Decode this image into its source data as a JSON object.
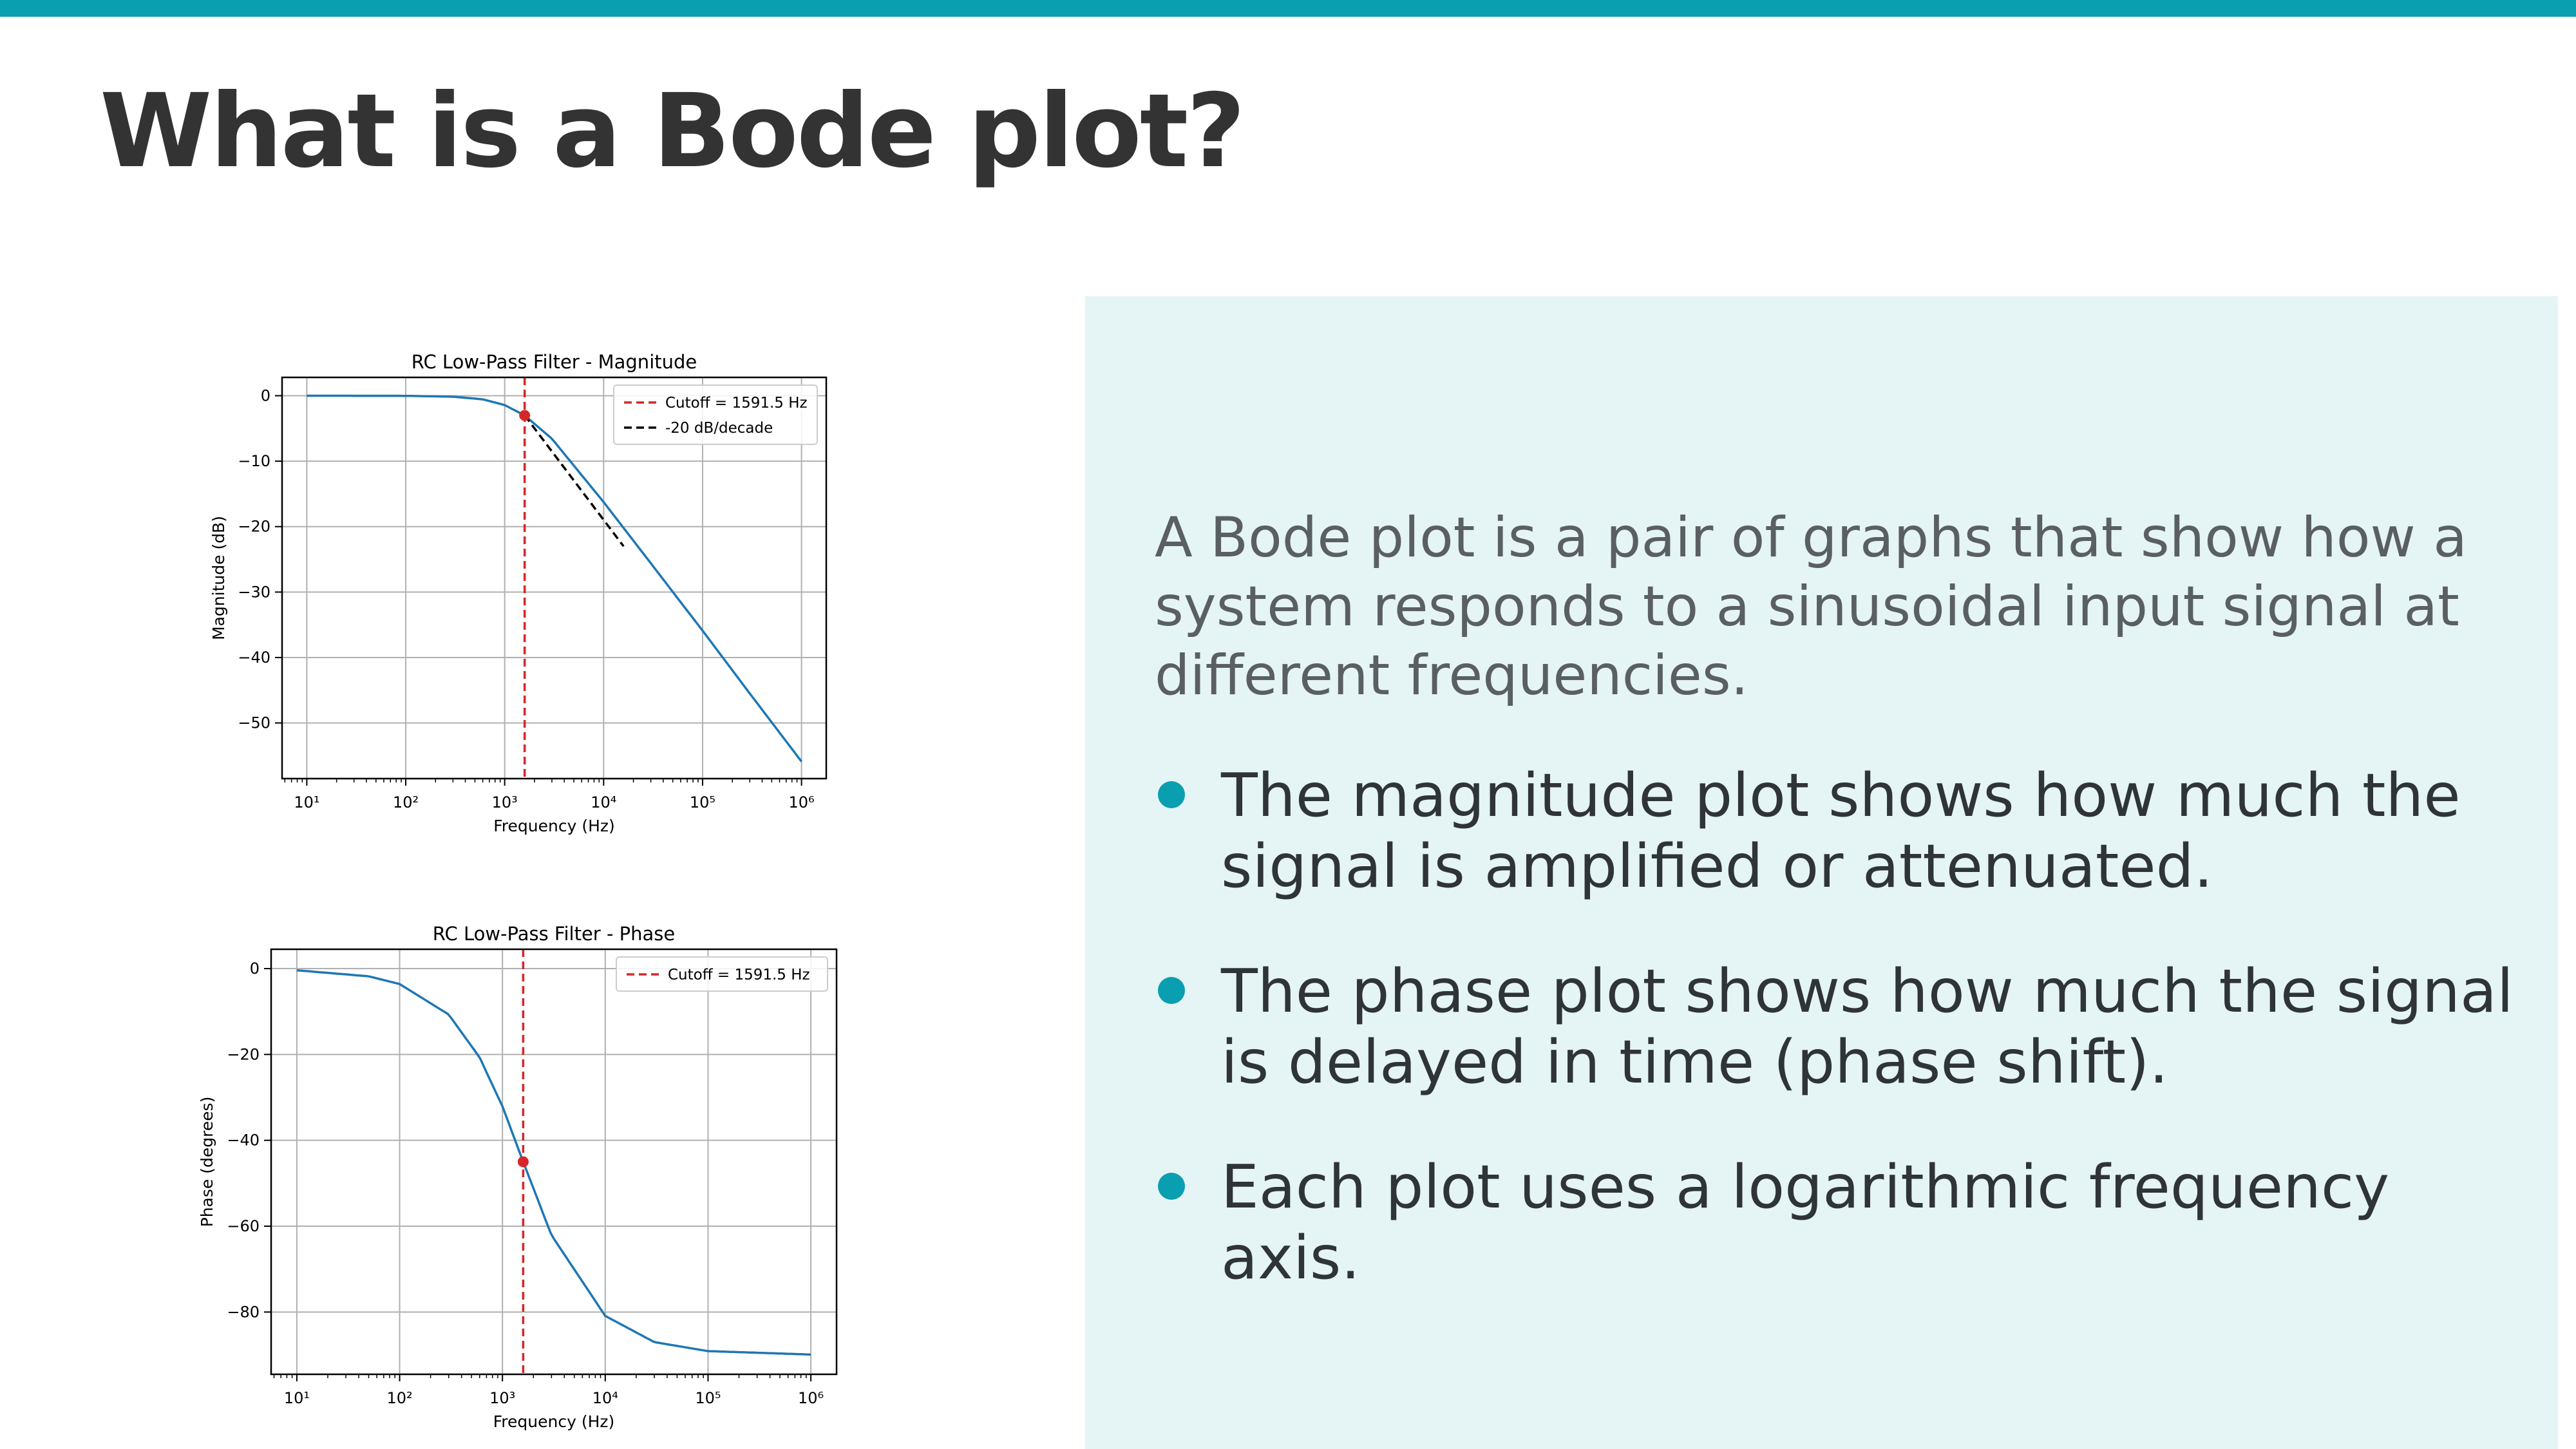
{
  "slide": {
    "title": "What is a Bode plot?",
    "accent_color": "#0a9fb0",
    "intro": "A Bode plot is a pair of graphs that show how a system responds to a sinusoidal input signal at different frequencies.",
    "bullets": [
      "The magnitude plot shows how much the signal is amplified or attenuated.",
      "The phase plot shows how much the signal is delayed in time (phase shift).",
      "Each plot uses a logarithmic frequency axis."
    ]
  },
  "chart_data": [
    {
      "type": "line",
      "title": "RC Low-Pass Filter - Magnitude",
      "xlabel": "Frequency (Hz)",
      "ylabel": "Magnitude (dB)",
      "xscale": "log",
      "xlim": [
        10,
        1000000
      ],
      "ylim": [
        -58.5,
        2.8
      ],
      "xticks": [
        10,
        100,
        1000,
        10000,
        100000,
        1000000
      ],
      "xtick_labels": [
        "10¹",
        "10²",
        "10³",
        "10⁴",
        "10⁵",
        "10⁶"
      ],
      "yticks": [
        0,
        -10,
        -20,
        -30,
        -40,
        -50
      ],
      "ytick_labels": [
        "0",
        "−10",
        "−20",
        "−30",
        "−40",
        "−50"
      ],
      "grid": true,
      "legend_position": "top-right",
      "series": [
        {
          "color": "#1f77b4",
          "x": [
            10,
            100,
            300,
            600,
            1000,
            1591.5,
            3000,
            10000,
            30000,
            100000,
            300000,
            1000000
          ],
          "y": [
            0,
            -0.02,
            -0.15,
            -0.55,
            -1.43,
            -3.01,
            -6.57,
            -16.25,
            -25.6,
            -35.9,
            -45.5,
            -55.9
          ]
        },
        {
          "name": "-20 dB/decade",
          "style": "dashed",
          "color": "#000000",
          "x": [
            1591.5,
            15915
          ],
          "y": [
            -3.01,
            -23.01
          ]
        }
      ],
      "annotations": [
        {
          "type": "vline",
          "x": 1591.5,
          "color": "#d62728",
          "style": "dashed",
          "label": "Cutoff = 1591.5 Hz"
        },
        {
          "type": "point",
          "x": 1591.5,
          "y": -3.01,
          "color": "#d62728"
        }
      ]
    },
    {
      "type": "line",
      "title": "RC Low-Pass Filter - Phase",
      "xlabel": "Frequency (Hz)",
      "ylabel": "Phase (degrees)",
      "xscale": "log",
      "xlim": [
        10,
        1000000
      ],
      "ylim": [
        -94.5,
        4.5
      ],
      "xticks": [
        10,
        100,
        1000,
        10000,
        100000,
        1000000
      ],
      "xtick_labels": [
        "10¹",
        "10²",
        "10³",
        "10⁴",
        "10⁵",
        "10⁶"
      ],
      "yticks": [
        0,
        -20,
        -40,
        -60,
        -80
      ],
      "ytick_labels": [
        "0",
        "−20",
        "−40",
        "−60",
        "−80"
      ],
      "grid": true,
      "legend_position": "top-right",
      "series": [
        {
          "color": "#1f77b4",
          "x": [
            10,
            50,
            100,
            300,
            600,
            1000,
            1591.5,
            3000,
            10000,
            30000,
            100000,
            1000000
          ],
          "y": [
            -0.4,
            -1.8,
            -3.6,
            -10.7,
            -20.7,
            -32.1,
            -45,
            -62.1,
            -80.9,
            -87,
            -89.1,
            -89.9
          ]
        }
      ],
      "annotations": [
        {
          "type": "vline",
          "x": 1591.5,
          "color": "#d62728",
          "style": "dashed",
          "label": "Cutoff = 1591.5 Hz"
        },
        {
          "type": "point",
          "x": 1591.5,
          "y": -45,
          "color": "#d62728"
        }
      ]
    }
  ]
}
